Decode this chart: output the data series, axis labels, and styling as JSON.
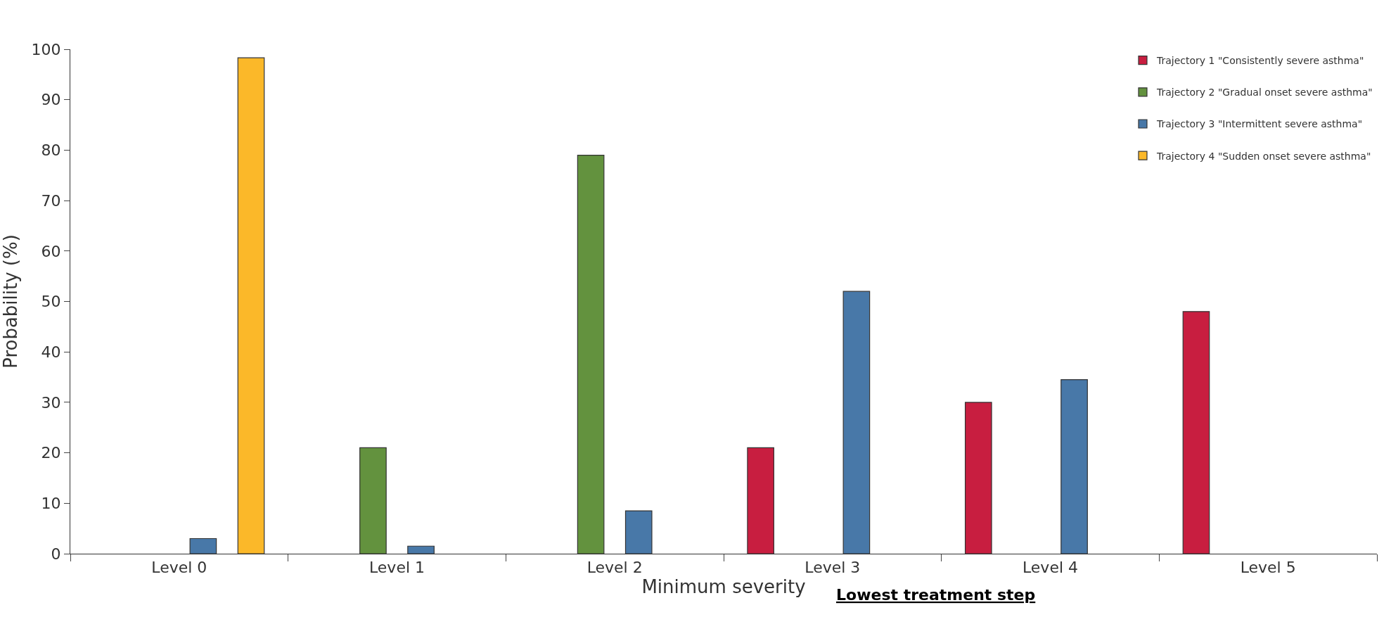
{
  "chart_data": {
    "type": "bar",
    "xlabel": "Minimum severity",
    "ylabel": "Probability (%)",
    "annotations": [
      "Lowest treatment step"
    ],
    "categories": [
      "Level 0",
      "Level 1",
      "Level 2",
      "Level 3",
      "Level 4",
      "Level 5"
    ],
    "series": [
      {
        "name": "Trajectory 1 \"Consistently severe asthma\"",
        "color": "#c81e40",
        "values": [
          null,
          null,
          null,
          21,
          30,
          48
        ]
      },
      {
        "name": "Trajectory 2 \"Gradual onset severe asthma\"",
        "color": "#63923e",
        "values": [
          null,
          21,
          79,
          null,
          null,
          null
        ]
      },
      {
        "name": "Trajectory 3 \"Intermittent severe asthma\"",
        "color": "#4878a8",
        "values": [
          3,
          1.5,
          8.5,
          52,
          34.5,
          null
        ]
      },
      {
        "name": "Trajectory 4 \"Sudden onset severe asthma\"",
        "color": "#fbb829",
        "values": [
          98.3,
          null,
          null,
          null,
          null,
          null
        ]
      }
    ],
    "ylim": [
      0,
      100
    ],
    "yticks": [
      0,
      10,
      20,
      30,
      40,
      50,
      60,
      70,
      80,
      90,
      100
    ],
    "legend": "top right"
  }
}
